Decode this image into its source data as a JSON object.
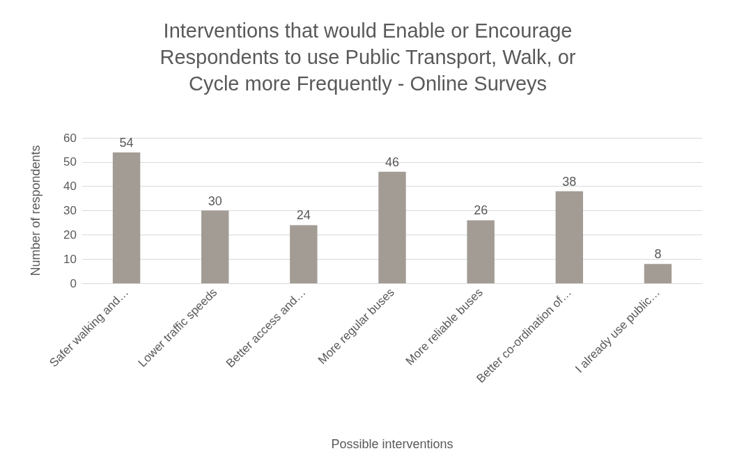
{
  "chart_data": {
    "type": "bar",
    "title": "Interventions that would Enable or Encourage\nRespondents to use Public Transport, Walk, or\nCycle more Frequently - Online Surveys",
    "xlabel": "Possible interventions",
    "ylabel": "Number of respondents",
    "categories": [
      "Safer walking and…",
      "Lower traffic speeds",
      "Better access and…",
      "More regular buses",
      "More reliable buses",
      "Better co-ordination of…",
      "I already use public…"
    ],
    "values": [
      54,
      30,
      24,
      46,
      26,
      38,
      8
    ],
    "color": "#a39c95",
    "ylim": [
      0,
      60
    ],
    "yticks": [
      0,
      10,
      20,
      30,
      40,
      50,
      60
    ],
    "grid": "y",
    "data_labels": true
  }
}
